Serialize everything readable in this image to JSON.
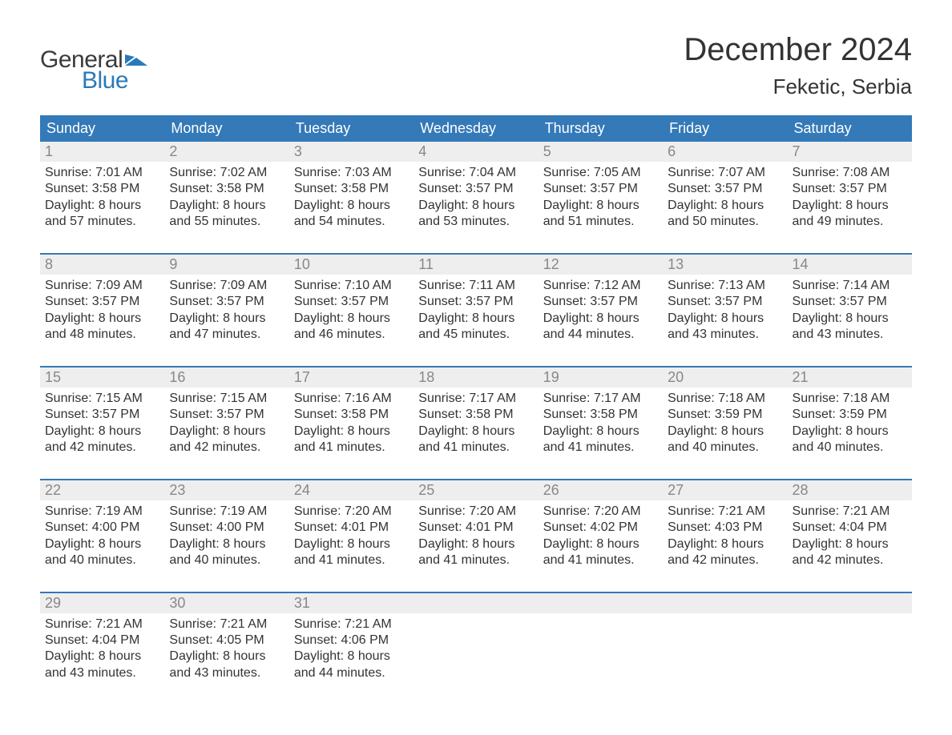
{
  "logo": {
    "word1": "General",
    "word2": "Blue",
    "flag_color": "#2a7ab9",
    "text_color_1": "#3a3a3a",
    "text_color_2": "#2a7ab9"
  },
  "title": "December 2024",
  "location": "Feketic, Serbia",
  "colors": {
    "header_bg": "#3479b8",
    "header_text": "#ffffff",
    "daynum_bg": "#eeeeee",
    "daynum_text": "#888888",
    "body_text": "#333333",
    "week_border": "#3479b8",
    "page_bg": "#ffffff"
  },
  "fonts": {
    "title_size_pt": 30,
    "location_size_pt": 20,
    "weekday_size_pt": 14,
    "daynum_size_pt": 14,
    "body_size_pt": 12
  },
  "weekdays": [
    "Sunday",
    "Monday",
    "Tuesday",
    "Wednesday",
    "Thursday",
    "Friday",
    "Saturday"
  ],
  "weeks": [
    [
      {
        "n": "1",
        "sunrise": "Sunrise: 7:01 AM",
        "sunset": "Sunset: 3:58 PM",
        "day1": "Daylight: 8 hours",
        "day2": "and 57 minutes."
      },
      {
        "n": "2",
        "sunrise": "Sunrise: 7:02 AM",
        "sunset": "Sunset: 3:58 PM",
        "day1": "Daylight: 8 hours",
        "day2": "and 55 minutes."
      },
      {
        "n": "3",
        "sunrise": "Sunrise: 7:03 AM",
        "sunset": "Sunset: 3:58 PM",
        "day1": "Daylight: 8 hours",
        "day2": "and 54 minutes."
      },
      {
        "n": "4",
        "sunrise": "Sunrise: 7:04 AM",
        "sunset": "Sunset: 3:57 PM",
        "day1": "Daylight: 8 hours",
        "day2": "and 53 minutes."
      },
      {
        "n": "5",
        "sunrise": "Sunrise: 7:05 AM",
        "sunset": "Sunset: 3:57 PM",
        "day1": "Daylight: 8 hours",
        "day2": "and 51 minutes."
      },
      {
        "n": "6",
        "sunrise": "Sunrise: 7:07 AM",
        "sunset": "Sunset: 3:57 PM",
        "day1": "Daylight: 8 hours",
        "day2": "and 50 minutes."
      },
      {
        "n": "7",
        "sunrise": "Sunrise: 7:08 AM",
        "sunset": "Sunset: 3:57 PM",
        "day1": "Daylight: 8 hours",
        "day2": "and 49 minutes."
      }
    ],
    [
      {
        "n": "8",
        "sunrise": "Sunrise: 7:09 AM",
        "sunset": "Sunset: 3:57 PM",
        "day1": "Daylight: 8 hours",
        "day2": "and 48 minutes."
      },
      {
        "n": "9",
        "sunrise": "Sunrise: 7:09 AM",
        "sunset": "Sunset: 3:57 PM",
        "day1": "Daylight: 8 hours",
        "day2": "and 47 minutes."
      },
      {
        "n": "10",
        "sunrise": "Sunrise: 7:10 AM",
        "sunset": "Sunset: 3:57 PM",
        "day1": "Daylight: 8 hours",
        "day2": "and 46 minutes."
      },
      {
        "n": "11",
        "sunrise": "Sunrise: 7:11 AM",
        "sunset": "Sunset: 3:57 PM",
        "day1": "Daylight: 8 hours",
        "day2": "and 45 minutes."
      },
      {
        "n": "12",
        "sunrise": "Sunrise: 7:12 AM",
        "sunset": "Sunset: 3:57 PM",
        "day1": "Daylight: 8 hours",
        "day2": "and 44 minutes."
      },
      {
        "n": "13",
        "sunrise": "Sunrise: 7:13 AM",
        "sunset": "Sunset: 3:57 PM",
        "day1": "Daylight: 8 hours",
        "day2": "and 43 minutes."
      },
      {
        "n": "14",
        "sunrise": "Sunrise: 7:14 AM",
        "sunset": "Sunset: 3:57 PM",
        "day1": "Daylight: 8 hours",
        "day2": "and 43 minutes."
      }
    ],
    [
      {
        "n": "15",
        "sunrise": "Sunrise: 7:15 AM",
        "sunset": "Sunset: 3:57 PM",
        "day1": "Daylight: 8 hours",
        "day2": "and 42 minutes."
      },
      {
        "n": "16",
        "sunrise": "Sunrise: 7:15 AM",
        "sunset": "Sunset: 3:57 PM",
        "day1": "Daylight: 8 hours",
        "day2": "and 42 minutes."
      },
      {
        "n": "17",
        "sunrise": "Sunrise: 7:16 AM",
        "sunset": "Sunset: 3:58 PM",
        "day1": "Daylight: 8 hours",
        "day2": "and 41 minutes."
      },
      {
        "n": "18",
        "sunrise": "Sunrise: 7:17 AM",
        "sunset": "Sunset: 3:58 PM",
        "day1": "Daylight: 8 hours",
        "day2": "and 41 minutes."
      },
      {
        "n": "19",
        "sunrise": "Sunrise: 7:17 AM",
        "sunset": "Sunset: 3:58 PM",
        "day1": "Daylight: 8 hours",
        "day2": "and 41 minutes."
      },
      {
        "n": "20",
        "sunrise": "Sunrise: 7:18 AM",
        "sunset": "Sunset: 3:59 PM",
        "day1": "Daylight: 8 hours",
        "day2": "and 40 minutes."
      },
      {
        "n": "21",
        "sunrise": "Sunrise: 7:18 AM",
        "sunset": "Sunset: 3:59 PM",
        "day1": "Daylight: 8 hours",
        "day2": "and 40 minutes."
      }
    ],
    [
      {
        "n": "22",
        "sunrise": "Sunrise: 7:19 AM",
        "sunset": "Sunset: 4:00 PM",
        "day1": "Daylight: 8 hours",
        "day2": "and 40 minutes."
      },
      {
        "n": "23",
        "sunrise": "Sunrise: 7:19 AM",
        "sunset": "Sunset: 4:00 PM",
        "day1": "Daylight: 8 hours",
        "day2": "and 40 minutes."
      },
      {
        "n": "24",
        "sunrise": "Sunrise: 7:20 AM",
        "sunset": "Sunset: 4:01 PM",
        "day1": "Daylight: 8 hours",
        "day2": "and 41 minutes."
      },
      {
        "n": "25",
        "sunrise": "Sunrise: 7:20 AM",
        "sunset": "Sunset: 4:01 PM",
        "day1": "Daylight: 8 hours",
        "day2": "and 41 minutes."
      },
      {
        "n": "26",
        "sunrise": "Sunrise: 7:20 AM",
        "sunset": "Sunset: 4:02 PM",
        "day1": "Daylight: 8 hours",
        "day2": "and 41 minutes."
      },
      {
        "n": "27",
        "sunrise": "Sunrise: 7:21 AM",
        "sunset": "Sunset: 4:03 PM",
        "day1": "Daylight: 8 hours",
        "day2": "and 42 minutes."
      },
      {
        "n": "28",
        "sunrise": "Sunrise: 7:21 AM",
        "sunset": "Sunset: 4:04 PM",
        "day1": "Daylight: 8 hours",
        "day2": "and 42 minutes."
      }
    ],
    [
      {
        "n": "29",
        "sunrise": "Sunrise: 7:21 AM",
        "sunset": "Sunset: 4:04 PM",
        "day1": "Daylight: 8 hours",
        "day2": "and 43 minutes."
      },
      {
        "n": "30",
        "sunrise": "Sunrise: 7:21 AM",
        "sunset": "Sunset: 4:05 PM",
        "day1": "Daylight: 8 hours",
        "day2": "and 43 minutes."
      },
      {
        "n": "31",
        "sunrise": "Sunrise: 7:21 AM",
        "sunset": "Sunset: 4:06 PM",
        "day1": "Daylight: 8 hours",
        "day2": "and 44 minutes."
      },
      null,
      null,
      null,
      null
    ]
  ]
}
